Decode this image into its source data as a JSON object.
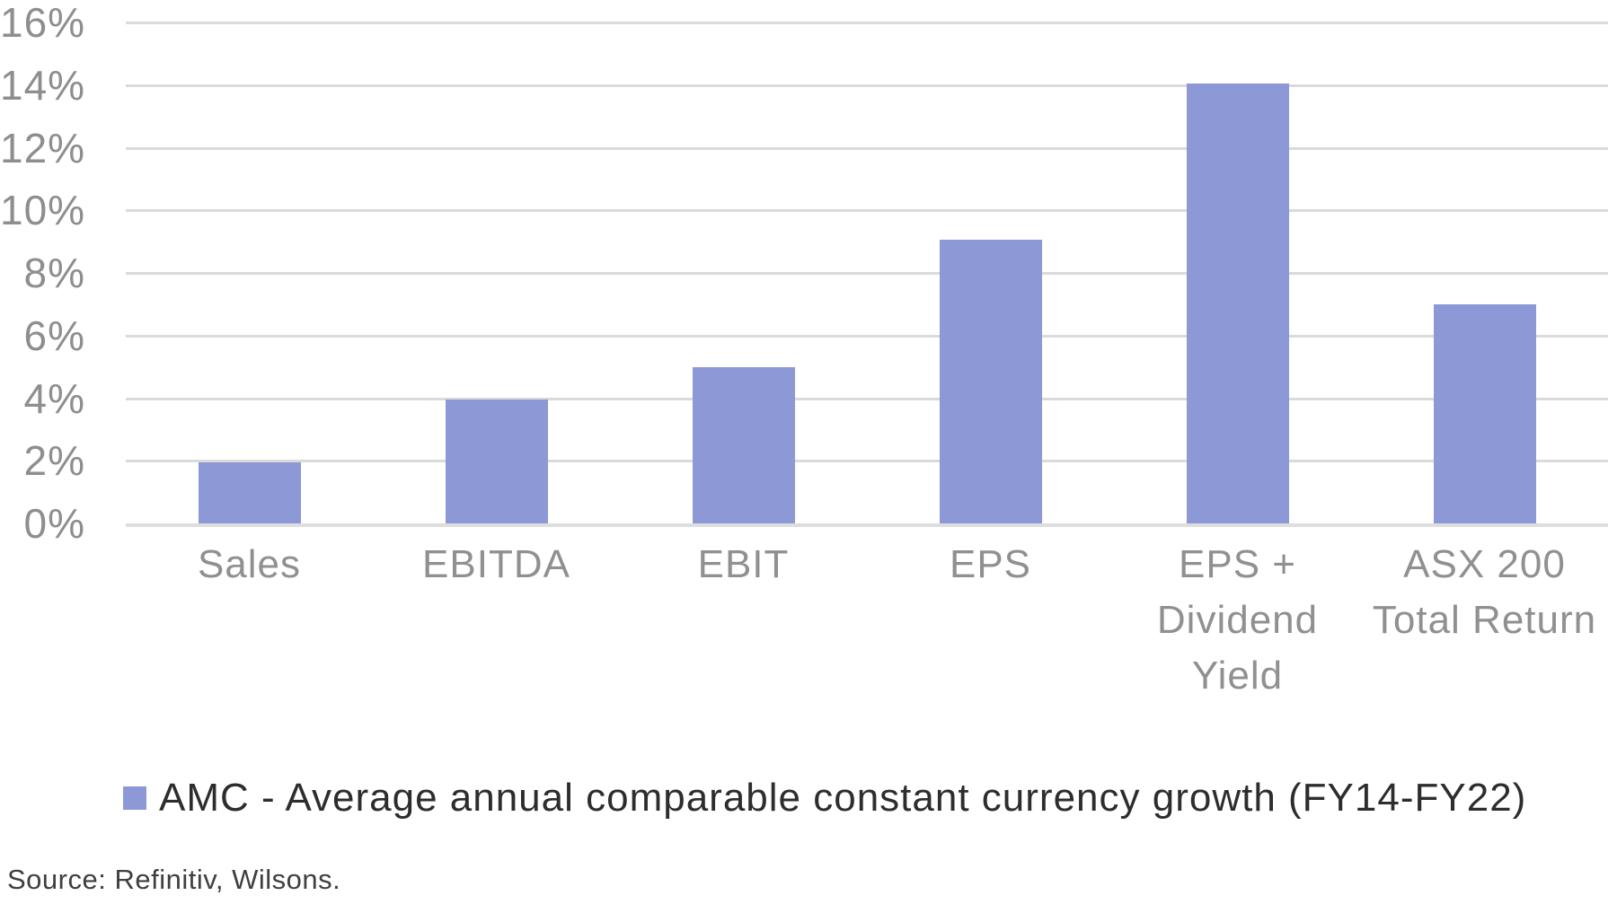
{
  "chart_data": {
    "type": "bar",
    "title": "",
    "xlabel": "",
    "ylabel": "",
    "categories": [
      "Sales",
      "EBITDA",
      "EBIT",
      "EPS",
      "EPS + Dividend Yield",
      "ASX 200 Total Return"
    ],
    "category_lines": [
      [
        "Sales"
      ],
      [
        "EBITDA"
      ],
      [
        "EBIT"
      ],
      [
        "EPS"
      ],
      [
        "EPS +",
        "Dividend",
        "Yield"
      ],
      [
        "ASX 200",
        "Total Return"
      ]
    ],
    "series": [
      {
        "name": "AMC - Average annual comparable constant currency growth (FY14-FY22)",
        "values": [
          1.95,
          3.95,
          5.0,
          9.05,
          14.05,
          7.0
        ]
      }
    ],
    "value_unit": "%",
    "ylim": [
      0,
      16
    ],
    "ytick_step": 2,
    "ytick_labels": [
      "0%",
      "2%",
      "4%",
      "6%",
      "8%",
      "10%",
      "12%",
      "14%",
      "16%"
    ],
    "grid": true,
    "legend_position": "bottom-left",
    "bar_color": "#8d99d6",
    "gridline_color": "#dadada",
    "tick_label_color": "#8e8e8e"
  },
  "legend": {
    "label": "AMC - Average annual comparable constant currency growth (FY14-FY22)",
    "marker_color": "#8d99d6"
  },
  "source": {
    "text": "Source: Refinitiv, Wilsons."
  }
}
